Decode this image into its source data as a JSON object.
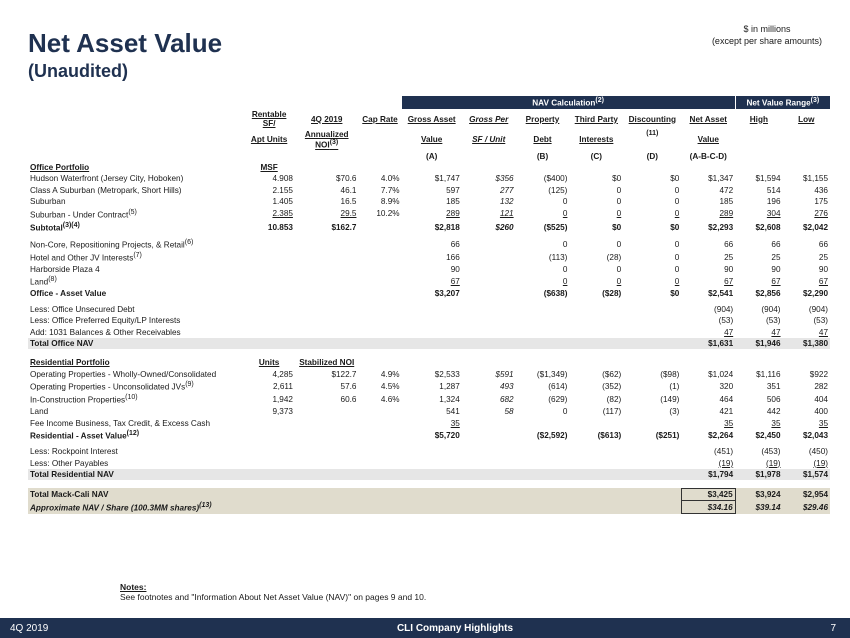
{
  "header": {
    "note1": "$ in millions",
    "note2": "(except per share amounts)",
    "title": "Net Asset Value",
    "subtitle": "(Unaudited)"
  },
  "colHeaders": {
    "rentable": "Rentable SF/",
    "aptUnits": "Apt Units",
    "q": "4Q 2019",
    "anoi": "Annualized NOI",
    "cap": "Cap Rate",
    "navBand": "NAV Calculation",
    "gross": "Gross Asset",
    "grossV": "Value",
    "per": "Gross Per",
    "perV": "SF / Unit",
    "prop": "Property",
    "propV": "Debt",
    "tp": "Third Party",
    "tpV": "Interests",
    "disc": "Discounting",
    "net": "Net Asset",
    "netV": "Value",
    "rangeBand": "Net Value Range",
    "high": "High",
    "low": "Low",
    "A": "(A)",
    "B": "(B)",
    "C": "(C)",
    "D": "(D)",
    "ABCD": "(A-B-C-D)"
  },
  "office": {
    "heading": "Office Portfolio",
    "unitsHeading": "MSF",
    "rows": [
      {
        "lbl": "Hudson Waterfront (Jersey City, Hoboken)",
        "sf": "4.908",
        "noi": "$70.6",
        "cap": "4.0%",
        "gav": "$1,747",
        "per": "$356",
        "debt": "($400)",
        "tp": "$0",
        "disc": "$0",
        "net": "$1,347",
        "hi": "$1,594",
        "lo": "$1,155"
      },
      {
        "lbl": "Class A Suburban (Metropark, Short Hills)",
        "sf": "2.155",
        "noi": "46.1",
        "cap": "7.7%",
        "gav": "597",
        "per": "277",
        "debt": "(125)",
        "tp": "0",
        "disc": "0",
        "net": "472",
        "hi": "514",
        "lo": "436"
      },
      {
        "lbl": "Suburban",
        "sf": "1.405",
        "noi": "16.5",
        "cap": "8.9%",
        "gav": "185",
        "per": "132",
        "debt": "0",
        "tp": "0",
        "disc": "0",
        "net": "185",
        "hi": "196",
        "lo": "175"
      },
      {
        "lbl": "Suburban - Under Contract",
        "sup": "(5)",
        "sf": "2.385",
        "noi": "29.5",
        "cap": "10.2%",
        "gav": "289",
        "per": "121",
        "debt": "0",
        "tp": "0",
        "disc": "0",
        "net": "289",
        "hi": "304",
        "lo": "276",
        "u": true
      }
    ],
    "subtotal": {
      "lbl": "Subtotal",
      "sup": "(3)(4)",
      "sf": "10.853",
      "noi": "$162.7",
      "gav": "$2,818",
      "per": "$260",
      "debt": "($525)",
      "tp": "$0",
      "disc": "$0",
      "net": "$2,293",
      "hi": "$2,608",
      "lo": "$2,042"
    },
    "extra": [
      {
        "lbl": "Non-Core, Repositioning Projects, & Retail",
        "sup": "(6)",
        "gav": "66",
        "debt": "0",
        "tp": "0",
        "disc": "0",
        "net": "66",
        "hi": "66",
        "lo": "66"
      },
      {
        "lbl": "Hotel and Other JV Interests",
        "sup": "(7)",
        "gav": "166",
        "debt": "(113)",
        "tp": "(28)",
        "disc": "0",
        "net": "25",
        "hi": "25",
        "lo": "25"
      },
      {
        "lbl": "Harborside Plaza 4",
        "gav": "90",
        "debt": "0",
        "tp": "0",
        "disc": "0",
        "net": "90",
        "hi": "90",
        "lo": "90"
      },
      {
        "lbl": "Land",
        "sup": "(8)",
        "gav": "67",
        "debt": "0",
        "tp": "0",
        "disc": "0",
        "net": "67",
        "hi": "67",
        "lo": "67",
        "u": true
      }
    ],
    "assetValue": {
      "lbl": "Office - Asset Value",
      "gav": "$3,207",
      "debt": "($638)",
      "tp": "($28)",
      "disc": "$0",
      "net": "$2,541",
      "hi": "$2,856",
      "lo": "$2,290"
    },
    "adjust": [
      {
        "lbl": "Less: Office Unsecured Debt",
        "net": "(904)",
        "hi": "(904)",
        "lo": "(904)"
      },
      {
        "lbl": "Less: Office Preferred Equity/LP Interests",
        "net": "(53)",
        "hi": "(53)",
        "lo": "(53)"
      },
      {
        "lbl": "Add: 1031 Balances & Other Receivables",
        "net": "47",
        "hi": "47",
        "lo": "47",
        "u": true
      }
    ],
    "total": {
      "lbl": "Total Office NAV",
      "net": "$1,631",
      "hi": "$1,946",
      "lo": "$1,380"
    }
  },
  "res": {
    "heading": "Residential Portfolio",
    "unitsHeading": "Units",
    "noiHeading": "Stabilized NOI",
    "rows": [
      {
        "lbl": "Operating Properties - Wholly-Owned/Consolidated",
        "sf": "4,285",
        "noi": "$122.7",
        "cap": "4.9%",
        "gav": "$2,533",
        "per": "$591",
        "debt": "($1,349)",
        "tp": "($62)",
        "disc": "($98)",
        "net": "$1,024",
        "hi": "$1,116",
        "lo": "$922"
      },
      {
        "lbl": "Operating Properties - Unconsolidated JVs",
        "sup": "(9)",
        "sf": "2,611",
        "noi": "57.6",
        "cap": "4.5%",
        "gav": "1,287",
        "per": "493",
        "debt": "(614)",
        "tp": "(352)",
        "disc": "(1)",
        "net": "320",
        "hi": "351",
        "lo": "282"
      },
      {
        "lbl": "In-Construction Properties",
        "sup": "(10)",
        "sf": "1,942",
        "noi": "60.6",
        "cap": "4.6%",
        "gav": "1,324",
        "per": "682",
        "debt": "(629)",
        "tp": "(82)",
        "disc": "(149)",
        "net": "464",
        "hi": "506",
        "lo": "404"
      },
      {
        "lbl": "Land",
        "sf": "9,373",
        "gav": "541",
        "per": "58",
        "debt": "0",
        "tp": "(117)",
        "disc": "(3)",
        "net": "421",
        "hi": "442",
        "lo": "400"
      },
      {
        "lbl": "Fee Income Business, Tax Credit, & Excess Cash",
        "gav": "35",
        "net": "35",
        "hi": "35",
        "lo": "35",
        "u": true
      }
    ],
    "assetValue": {
      "lbl": "Residential - Asset Value",
      "sup": "(12)",
      "gav": "$5,720",
      "debt": "($2,592)",
      "tp": "($613)",
      "disc": "($251)",
      "net": "$2,264",
      "hi": "$2,450",
      "lo": "$2,043"
    },
    "adjust": [
      {
        "lbl": "Less: Rockpoint Interest",
        "net": "(451)",
        "hi": "(453)",
        "lo": "(450)"
      },
      {
        "lbl": "Less: Other Payables",
        "net": "(19)",
        "hi": "(19)",
        "lo": "(19)",
        "u": true
      }
    ],
    "total": {
      "lbl": "Total Residential NAV",
      "net": "$1,794",
      "hi": "$1,978",
      "lo": "$1,574"
    }
  },
  "grand": {
    "total": {
      "lbl": "Total Mack-Cali NAV",
      "net": "$3,425",
      "hi": "$3,924",
      "lo": "$2,954"
    },
    "pershare": {
      "lbl": "Approximate NAV / Share (100.3MM shares)",
      "sup": "(13)",
      "net": "$34.16",
      "hi": "$39.14",
      "lo": "$29.46"
    }
  },
  "notes": {
    "h": "Notes:",
    "t": "See footnotes and \"Information About Net Asset Value (NAV)\" on pages 9 and 10."
  },
  "footer": {
    "l": "4Q 2019",
    "c": "CLI Company Highlights",
    "r": "7"
  },
  "sup": {
    "two": "(2)",
    "three": "(3)",
    "eleven": "(11)"
  }
}
